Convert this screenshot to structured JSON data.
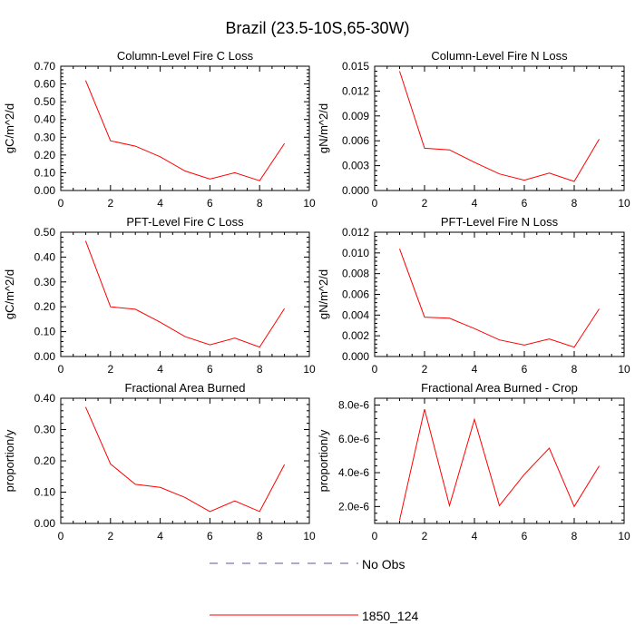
{
  "figure": {
    "title": "Brazil (23.5-10S,65-30W)"
  },
  "legend": {
    "entries": [
      {
        "label": "No Obs",
        "style": "dashed",
        "color": "#5555aa"
      },
      {
        "label": "1850_124",
        "style": "solid",
        "color": "#ff0000"
      }
    ]
  },
  "chart_data": [
    {
      "type": "line",
      "title": "Column-Level Fire C Loss",
      "ylabel": "gC/m^2/d",
      "xlabel": "",
      "xlim": [
        0,
        10
      ],
      "ylim": [
        0,
        0.7
      ],
      "xticks": [
        "0",
        "2",
        "4",
        "6",
        "8",
        "10"
      ],
      "yticks": [
        "0.00",
        "0.10",
        "0.20",
        "0.30",
        "0.40",
        "0.50",
        "0.60",
        "0.70"
      ],
      "yticks_values": [
        0,
        0.1,
        0.2,
        0.3,
        0.4,
        0.5,
        0.6,
        0.7
      ],
      "series": [
        {
          "name": "1850_124",
          "color": "#ff0000",
          "x": [
            1,
            2,
            3,
            4,
            5,
            6,
            7,
            8,
            9
          ],
          "y": [
            0.62,
            0.28,
            0.25,
            0.19,
            0.11,
            0.065,
            0.1,
            0.055,
            0.265
          ]
        }
      ]
    },
    {
      "type": "line",
      "title": "Column-Level Fire N Loss",
      "ylabel": "gN/m^2/d",
      "xlabel": "",
      "xlim": [
        0,
        10
      ],
      "ylim": [
        0,
        0.015
      ],
      "xticks": [
        "0",
        "2",
        "4",
        "6",
        "8",
        "10"
      ],
      "yticks": [
        "0.000",
        "0.003",
        "0.006",
        "0.009",
        "0.012",
        "0.015"
      ],
      "yticks_values": [
        0,
        0.003,
        0.006,
        0.009,
        0.012,
        0.015
      ],
      "series": [
        {
          "name": "1850_124",
          "color": "#ff0000",
          "x": [
            1,
            2,
            3,
            4,
            5,
            6,
            7,
            8,
            9
          ],
          "y": [
            0.0144,
            0.0051,
            0.0049,
            0.0034,
            0.002,
            0.00125,
            0.0021,
            0.0011,
            0.0062
          ]
        }
      ]
    },
    {
      "type": "line",
      "title": "PFT-Level Fire C Loss",
      "ylabel": "gC/m^2/d",
      "xlabel": "",
      "xlim": [
        0,
        10
      ],
      "ylim": [
        0,
        0.5
      ],
      "xticks": [
        "0",
        "2",
        "4",
        "6",
        "8",
        "10"
      ],
      "yticks": [
        "0.00",
        "0.10",
        "0.20",
        "0.30",
        "0.40",
        "0.50"
      ],
      "yticks_values": [
        0,
        0.1,
        0.2,
        0.3,
        0.4,
        0.5
      ],
      "series": [
        {
          "name": "1850_124",
          "color": "#ff0000",
          "x": [
            1,
            2,
            3,
            4,
            5,
            6,
            7,
            8,
            9
          ],
          "y": [
            0.465,
            0.2,
            0.19,
            0.138,
            0.08,
            0.047,
            0.074,
            0.038,
            0.193
          ]
        }
      ]
    },
    {
      "type": "line",
      "title": "PFT-Level Fire N Loss",
      "ylabel": "gN/m^2/d",
      "xlabel": "",
      "xlim": [
        0,
        10
      ],
      "ylim": [
        0,
        0.012
      ],
      "xticks": [
        "0",
        "2",
        "4",
        "6",
        "8",
        "10"
      ],
      "yticks": [
        "0.000",
        "0.002",
        "0.004",
        "0.006",
        "0.008",
        "0.010",
        "0.012"
      ],
      "yticks_values": [
        0,
        0.002,
        0.004,
        0.006,
        0.008,
        0.01,
        0.012
      ],
      "series": [
        {
          "name": "1850_124",
          "color": "#ff0000",
          "x": [
            1,
            2,
            3,
            4,
            5,
            6,
            7,
            8,
            9
          ],
          "y": [
            0.0104,
            0.0038,
            0.0037,
            0.0027,
            0.0016,
            0.0011,
            0.0017,
            0.0009,
            0.0046
          ]
        }
      ]
    },
    {
      "type": "line",
      "title": "Fractional Area Burned",
      "ylabel": "proportion/y",
      "xlabel": "",
      "xlim": [
        0,
        10
      ],
      "ylim": [
        0,
        0.4
      ],
      "xticks": [
        "0",
        "2",
        "4",
        "6",
        "8",
        "10"
      ],
      "yticks": [
        "0.00",
        "0.10",
        "0.20",
        "0.30",
        "0.40"
      ],
      "yticks_values": [
        0,
        0.1,
        0.2,
        0.3,
        0.4
      ],
      "series": [
        {
          "name": "1850_124",
          "color": "#ff0000",
          "x": [
            1,
            2,
            3,
            4,
            5,
            6,
            7,
            8,
            9
          ],
          "y": [
            0.372,
            0.19,
            0.125,
            0.115,
            0.083,
            0.038,
            0.072,
            0.038,
            0.188
          ]
        }
      ]
    },
    {
      "type": "line",
      "title": "Fractional Area Burned - Crop",
      "ylabel": "proportion/y",
      "xlabel": "",
      "xlim": [
        0,
        10
      ],
      "ylim": [
        1e-06,
        8.4e-06
      ],
      "xticks": [
        "0",
        "2",
        "4",
        "6",
        "8",
        "10"
      ],
      "yticks": [
        "2.0e-6",
        "4.0e-6",
        "6.0e-6",
        "8.0e-6"
      ],
      "yticks_values": [
        2e-06,
        4e-06,
        6e-06,
        8e-06
      ],
      "series": [
        {
          "name": "1850_124",
          "color": "#ff0000",
          "x": [
            1,
            2,
            3,
            4,
            5,
            6,
            7,
            8,
            9
          ],
          "y": [
            1.2e-06,
            7.75e-06,
            2.05e-06,
            7.15e-06,
            2.05e-06,
            3.9e-06,
            5.45e-06,
            2e-06,
            4.4e-06
          ]
        }
      ]
    }
  ]
}
